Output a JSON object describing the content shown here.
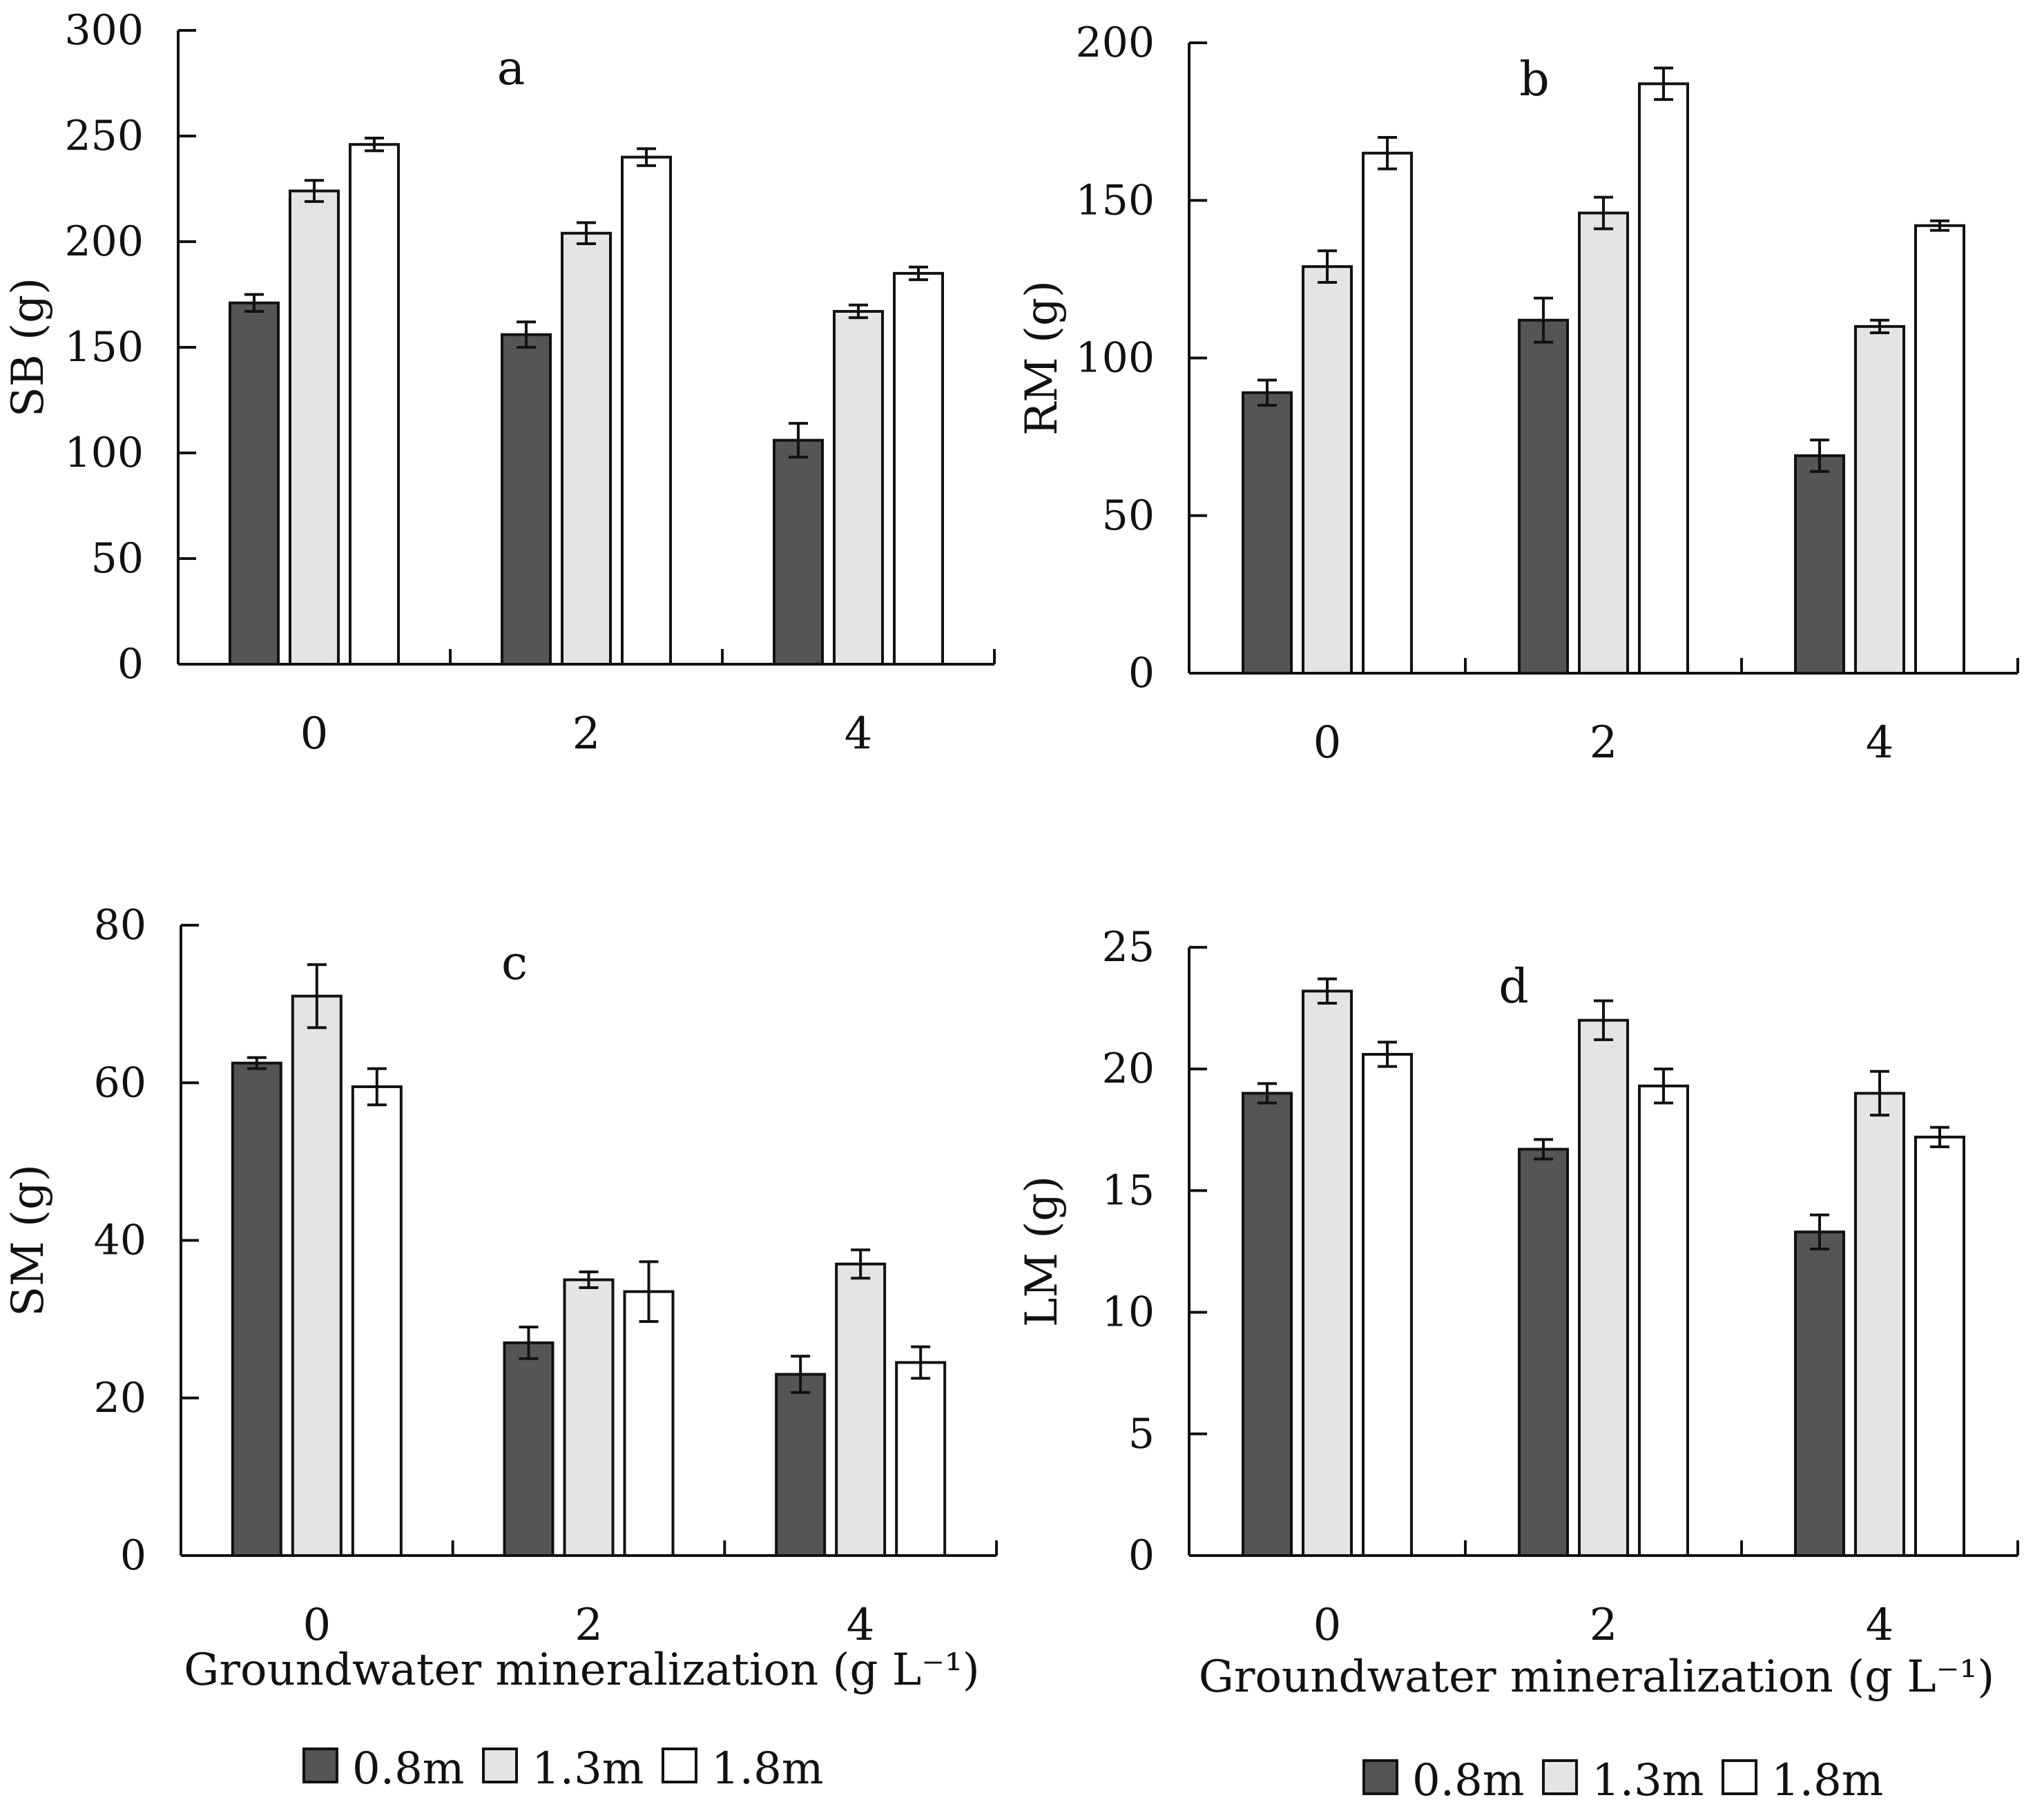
{
  "colors": {
    "series_fills": [
      "#555555",
      "#e4e4e4",
      "#ffffff"
    ],
    "stroke": "#111111"
  },
  "chart_data": [
    {
      "panel": "a",
      "type": "bar",
      "title": "a",
      "xlabel": "",
      "ylabel": "SB (g)",
      "categories": [
        "0",
        "2",
        "4"
      ],
      "ylim": [
        0,
        300
      ],
      "yticks": [
        "0",
        "50",
        "100",
        "150",
        "200",
        "250",
        "300"
      ],
      "series": [
        {
          "name": "0.8m",
          "values": [
            171,
            156,
            106
          ],
          "errors": [
            4,
            6,
            8
          ]
        },
        {
          "name": "1.3m",
          "values": [
            224,
            204,
            167
          ],
          "errors": [
            5,
            5,
            3
          ]
        },
        {
          "name": "1.8m",
          "values": [
            246,
            240,
            185
          ],
          "errors": [
            3,
            4,
            3
          ]
        }
      ]
    },
    {
      "panel": "b",
      "type": "bar",
      "title": "b",
      "xlabel": "",
      "ylabel": "RM (g)",
      "categories": [
        "0",
        "2",
        "4"
      ],
      "ylim": [
        0,
        200
      ],
      "yticks": [
        "0",
        "50",
        "100",
        "150",
        "200"
      ],
      "series": [
        {
          "name": "0.8m",
          "values": [
            89,
            112,
            69
          ],
          "errors": [
            4,
            7,
            5
          ]
        },
        {
          "name": "1.3m",
          "values": [
            129,
            146,
            110
          ],
          "errors": [
            5,
            5,
            2
          ]
        },
        {
          "name": "1.8m",
          "values": [
            165,
            187,
            142
          ],
          "errors": [
            5,
            5,
            1.5
          ]
        }
      ]
    },
    {
      "panel": "c",
      "type": "bar",
      "title": "c",
      "xlabel": "Groundwater mineralization (g L⁻¹)",
      "ylabel": "SM (g)",
      "categories": [
        "0",
        "2",
        "4"
      ],
      "ylim": [
        0,
        80
      ],
      "yticks": [
        "0",
        "20",
        "40",
        "60",
        "80"
      ],
      "series": [
        {
          "name": "0.8m",
          "values": [
            62.5,
            27,
            23
          ],
          "errors": [
            0.7,
            2,
            2.3
          ]
        },
        {
          "name": "1.3m",
          "values": [
            71,
            35,
            37
          ],
          "errors": [
            4,
            1,
            1.8
          ]
        },
        {
          "name": "1.8m",
          "values": [
            59.5,
            33.5,
            24.5
          ],
          "errors": [
            2.3,
            3.8,
            2
          ]
        }
      ]
    },
    {
      "panel": "d",
      "type": "bar",
      "title": "d",
      "xlabel": "Groundwater mineralization (g L⁻¹)",
      "ylabel": "LM (g)",
      "categories": [
        "0",
        "2",
        "4"
      ],
      "ylim": [
        0,
        25
      ],
      "yticks": [
        "0",
        "5",
        "10",
        "15",
        "20",
        "25"
      ],
      "series": [
        {
          "name": "0.8m",
          "values": [
            19,
            16.7,
            13.3
          ],
          "errors": [
            0.4,
            0.4,
            0.7
          ]
        },
        {
          "name": "1.3m",
          "values": [
            23.2,
            22,
            19
          ],
          "errors": [
            0.5,
            0.8,
            0.9
          ]
        },
        {
          "name": "1.8m",
          "values": [
            20.6,
            19.3,
            17.2
          ],
          "errors": [
            0.5,
            0.7,
            0.4
          ]
        }
      ]
    }
  ],
  "legend": {
    "entries": [
      "0.8m",
      "1.3m",
      "1.8m"
    ]
  }
}
